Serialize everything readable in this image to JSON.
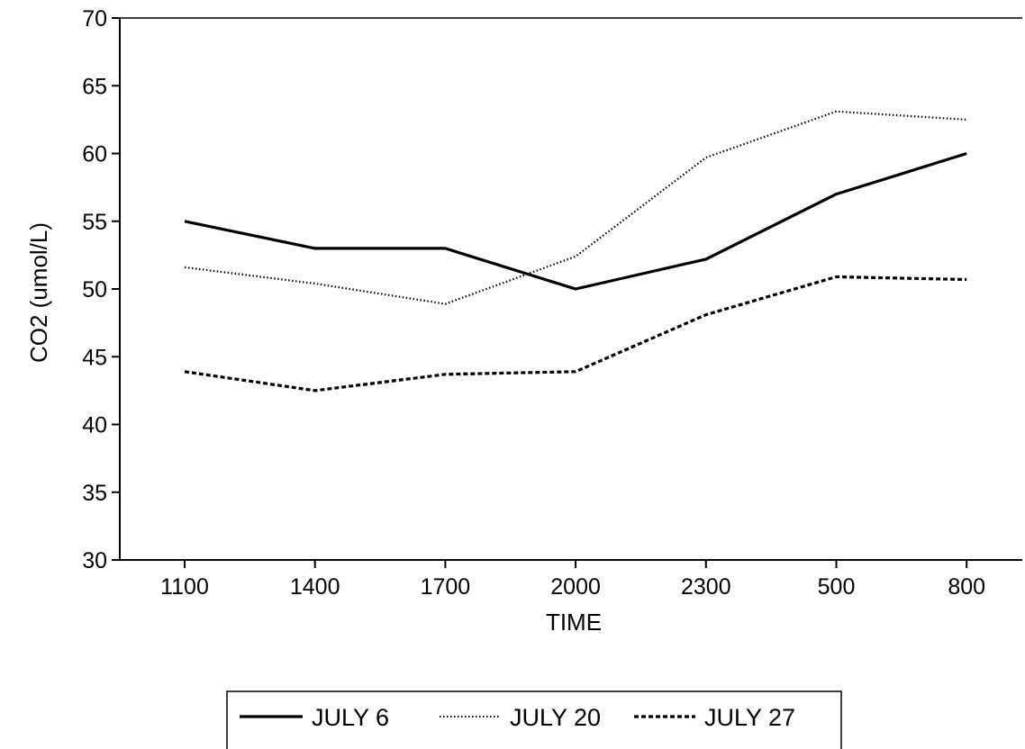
{
  "chart_data": {
    "type": "line",
    "xlabel": "TIME",
    "ylabel": "CO2 (umol/L)",
    "categories": [
      "1100",
      "1400",
      "1700",
      "2000",
      "2300",
      "500",
      "800"
    ],
    "ylim": [
      30,
      70
    ],
    "yticks": [
      30,
      35,
      40,
      45,
      50,
      55,
      60,
      65,
      70
    ],
    "grid": false,
    "legend_position": "bottom",
    "series": [
      {
        "name": "JULY 6",
        "style": "solid",
        "values": [
          55.0,
          53.0,
          53.0,
          50.0,
          52.2,
          57.0,
          60.0
        ]
      },
      {
        "name": "JULY 20",
        "style": "dotted",
        "values": [
          51.6,
          50.4,
          48.9,
          52.4,
          59.7,
          63.1,
          62.5
        ]
      },
      {
        "name": "JULY 27",
        "style": "dashed",
        "values": [
          43.9,
          42.5,
          43.7,
          43.9,
          48.1,
          50.9,
          50.7
        ]
      }
    ]
  }
}
